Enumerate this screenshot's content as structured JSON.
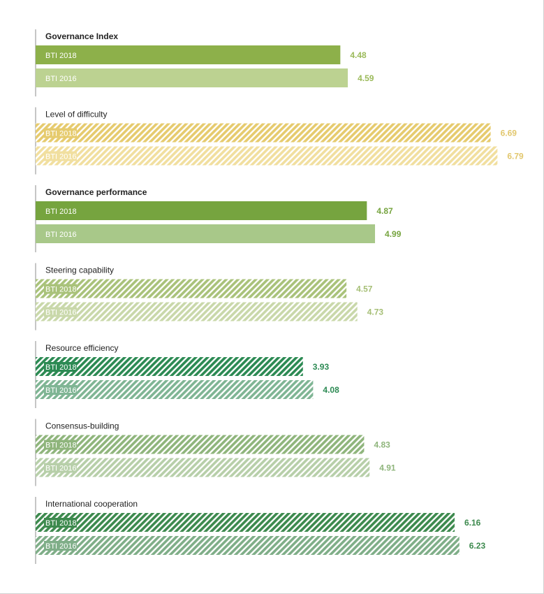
{
  "chart_data": {
    "type": "bar",
    "orientation": "horizontal",
    "grid": false,
    "legend": "none",
    "series_names": [
      "BTI 2018",
      "BTI 2016"
    ],
    "groups": [
      {
        "title": "Governance Index",
        "bold": true,
        "pattern": "solid",
        "colors": [
          "#8db04a",
          "#bcd291"
        ],
        "value_color": "#9bba5a",
        "label_box": false,
        "values": [
          4.48,
          4.59
        ]
      },
      {
        "title": "Level of difficulty",
        "bold": false,
        "pattern": "hatched",
        "colors": [
          "#e6cb6e",
          "#f1df9f"
        ],
        "value_color": "#e2c76e",
        "label_box": true,
        "values": [
          6.69,
          6.79
        ]
      },
      {
        "title": "Governance performance",
        "bold": true,
        "pattern": "solid",
        "colors": [
          "#76a43f",
          "#a8c889"
        ],
        "value_color": "#76a43f",
        "label_box": false,
        "values": [
          4.87,
          4.99
        ]
      },
      {
        "title": "Steering capability",
        "bold": false,
        "pattern": "hatched",
        "colors": [
          "#a9c27a",
          "#c9d8aa"
        ],
        "value_color": "#a6bf76",
        "label_box": true,
        "values": [
          4.57,
          4.73
        ]
      },
      {
        "title": "Resource efficiency",
        "bold": false,
        "pattern": "hatched",
        "colors": [
          "#2c8a53",
          "#7fb594"
        ],
        "value_color": "#2c8a53",
        "label_box": true,
        "values": [
          3.93,
          4.08
        ]
      },
      {
        "title": "Consensus-building",
        "bold": false,
        "pattern": "hatched",
        "colors": [
          "#8fb57c",
          "#b7cfa9"
        ],
        "value_color": "#8fb57c",
        "label_box": true,
        "values": [
          4.83,
          4.91
        ]
      },
      {
        "title": "International cooperation",
        "bold": false,
        "pattern": "hatched",
        "colors": [
          "#3d8a4e",
          "#7fae88"
        ],
        "value_color": "#3d8a4e",
        "label_box": true,
        "values": [
          6.16,
          6.23
        ]
      }
    ]
  }
}
